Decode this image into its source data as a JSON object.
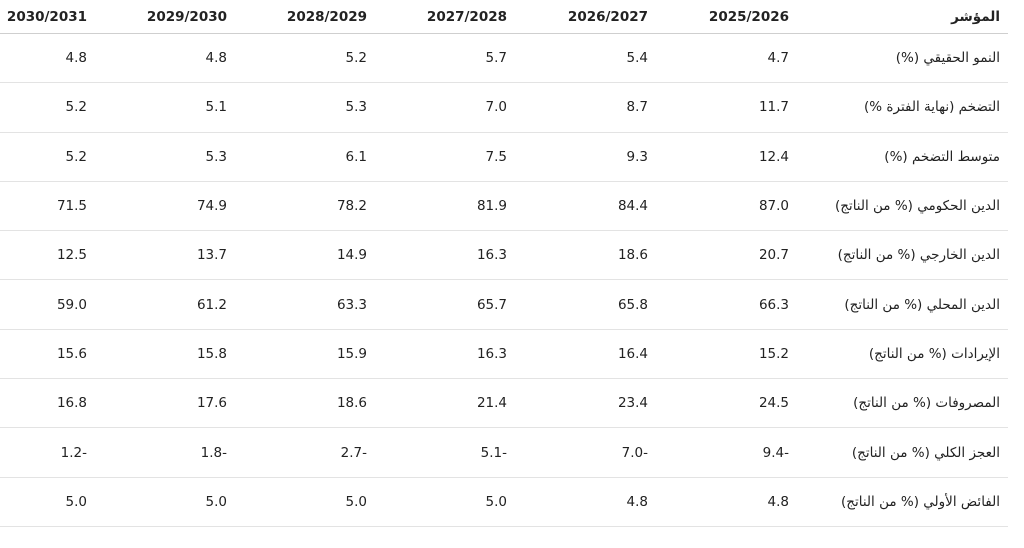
{
  "table": {
    "header": [
      "المؤشر",
      "2025/2026",
      "2026/2027",
      "2027/2028",
      "2028/2029",
      "2029/2030",
      "2030/2031"
    ],
    "rows": [
      [
        "النمو الحقيقي (%)",
        "4.7",
        "5.4",
        "5.7",
        "5.2",
        "4.8",
        "4.8"
      ],
      [
        "التضخم (نهاية الفترة %)",
        "11.7",
        "8.7",
        "7.0",
        "5.3",
        "5.1",
        "5.2"
      ],
      [
        "متوسط التضخم (%)",
        "12.4",
        "9.3",
        "7.5",
        "6.1",
        "5.3",
        "5.2"
      ],
      [
        "الدين الحكومي (% من الناتج)",
        "87.0",
        "84.4",
        "81.9",
        "78.2",
        "74.9",
        "71.5"
      ],
      [
        "الدين الخارجي (% من الناتج)",
        "20.7",
        "18.6",
        "16.3",
        "14.9",
        "13.7",
        "12.5"
      ],
      [
        "الدين المحلي (% من الناتج)",
        "66.3",
        "65.8",
        "65.7",
        "63.3",
        "61.2",
        "59.0"
      ],
      [
        "الإيرادات (% من الناتج)",
        "15.2",
        "16.4",
        "16.3",
        "15.9",
        "15.8",
        "15.6"
      ],
      [
        "المصروفات (% من الناتج)",
        "24.5",
        "23.4",
        "21.4",
        "18.6",
        "17.6",
        "16.8"
      ],
      [
        "العجز الكلي (% من الناتج)",
        "-9.4",
        "-7.0",
        "-5.1",
        "-2.7",
        "-1.8",
        "-1.2"
      ],
      [
        "الفائض الأولي (% من الناتج)",
        "4.8",
        "4.8",
        "5.0",
        "5.0",
        "5.0",
        "5.0"
      ]
    ]
  }
}
